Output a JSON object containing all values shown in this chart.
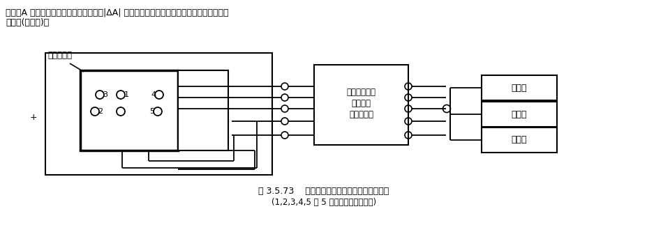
{
  "bg_color": "#ffffff",
  "text_color": "#000000",
  "header_text_line1": "式中，A 为同次测量中中心点的振幅值；|ΔA| 为同次测量中各点振幅值对中心点振幅值的最",
  "header_text_line2": "大偏差(绝对值)。",
  "caption_line1": "图 3.5.73    机械振动台台面振幅值均匀度的检测",
  "caption_line2": "(1,2,3,4,5 为 5 只加速度计安装位置)",
  "label_vibration_surface": "振动台台面",
  "label_multi_channel": "多通道测振仪",
  "label_multi_channel2": "（多通道",
  "label_multi_channel3": "积分网络）",
  "label_freq": "频率计",
  "label_voltage": "电压表",
  "label_oscilloscope": "示波器",
  "figsize": [
    9.28,
    3.56
  ],
  "dpi": 100
}
